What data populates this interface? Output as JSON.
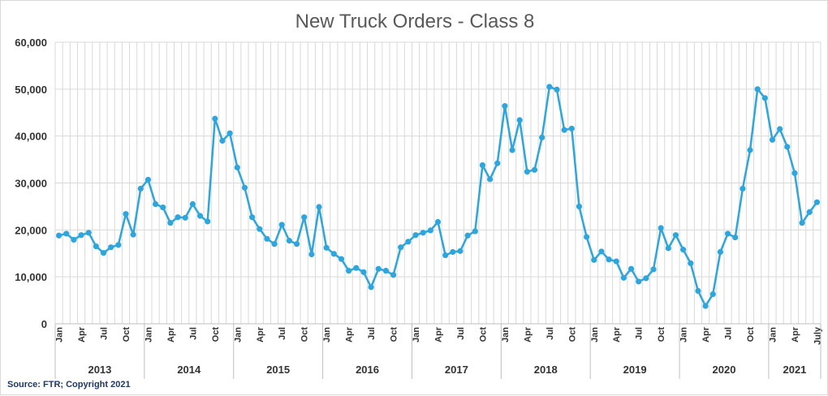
{
  "chart_data": {
    "type": "line",
    "title": "New Truck Orders - Class 8",
    "source": "Source: FTR; Copyright 2021",
    "xlabel": "",
    "ylabel": "",
    "ylim": [
      0,
      60000
    ],
    "y_ticks": [
      "0",
      "10,000",
      "20,000",
      "30,000",
      "40,000",
      "50,000",
      "60,000"
    ],
    "grid": true,
    "color": "#2ea6db",
    "month_labels": [
      "Jan",
      "Apr",
      "Jul",
      "Oct"
    ],
    "last_month_label": "July",
    "years": [
      "2013",
      "2014",
      "2015",
      "2016",
      "2017",
      "2018",
      "2019",
      "2020",
      "2021"
    ],
    "series": [
      {
        "values": [
          18800,
          19200,
          17900,
          18900,
          19400,
          16500,
          15100,
          16300,
          16800,
          23400,
          19000,
          28800,
          30700,
          25500,
          24800,
          21500,
          22700,
          22600,
          25500,
          23000,
          21800,
          43700,
          39000,
          40600,
          33300,
          29000,
          22700,
          20200,
          18100,
          17000,
          21100,
          17700,
          17000,
          22700,
          14800,
          24900,
          16200,
          14900,
          13800,
          11300,
          11900,
          11000,
          7800,
          11700,
          11300,
          10400,
          16300,
          17500,
          18900,
          19400,
          19900,
          21700,
          14600,
          15300,
          15500,
          18800,
          19700,
          33800,
          30800,
          34200,
          46400,
          37000,
          43400,
          32400,
          32800,
          39700,
          50500,
          49900,
          41300,
          41600,
          25000,
          18500,
          13600,
          15400,
          13700,
          13300,
          9800,
          11700,
          9000,
          9700,
          11600,
          20400,
          16100,
          18900,
          15800,
          12900,
          7000,
          3800,
          6300,
          15300,
          19200,
          18400,
          28800,
          37000,
          50000,
          48100,
          39200,
          41500,
          37700,
          32100,
          21500,
          23800,
          25900
        ]
      }
    ]
  }
}
